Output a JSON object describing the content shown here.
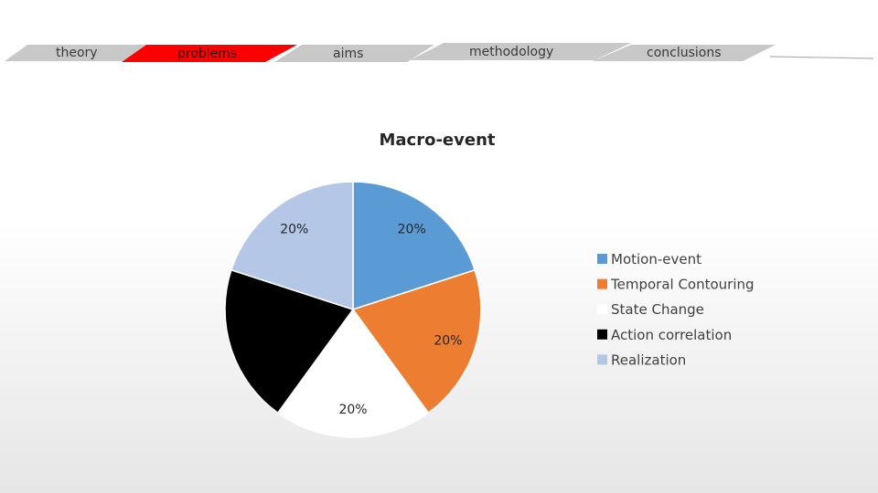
{
  "nav": {
    "tabs": [
      {
        "label": "theory",
        "active": false
      },
      {
        "label": "problems",
        "active": true
      },
      {
        "label": "aims",
        "active": false
      },
      {
        "label": "methodology",
        "active": false
      },
      {
        "label": "conclusions",
        "active": false
      }
    ],
    "active_color": "#ff0000",
    "inactive_color": "#c8c8c8"
  },
  "chart_data": {
    "type": "pie",
    "title": "Macro-event",
    "slices": [
      {
        "name": "Motion-event",
        "value": 20,
        "label": "20%",
        "color": "#5b9bd5"
      },
      {
        "name": "Temporal Contouring",
        "value": 20,
        "label": "20%",
        "color": "#ed7d31"
      },
      {
        "name": "State Change",
        "value": 20,
        "label": "20%",
        "color": "#ffffff"
      },
      {
        "name": "Action correlation",
        "value": 20,
        "label": "",
        "color": "#000000"
      },
      {
        "name": "Realization",
        "value": 20,
        "label": "20%",
        "color": "#b4c7e7"
      }
    ],
    "legend_position": "right"
  }
}
